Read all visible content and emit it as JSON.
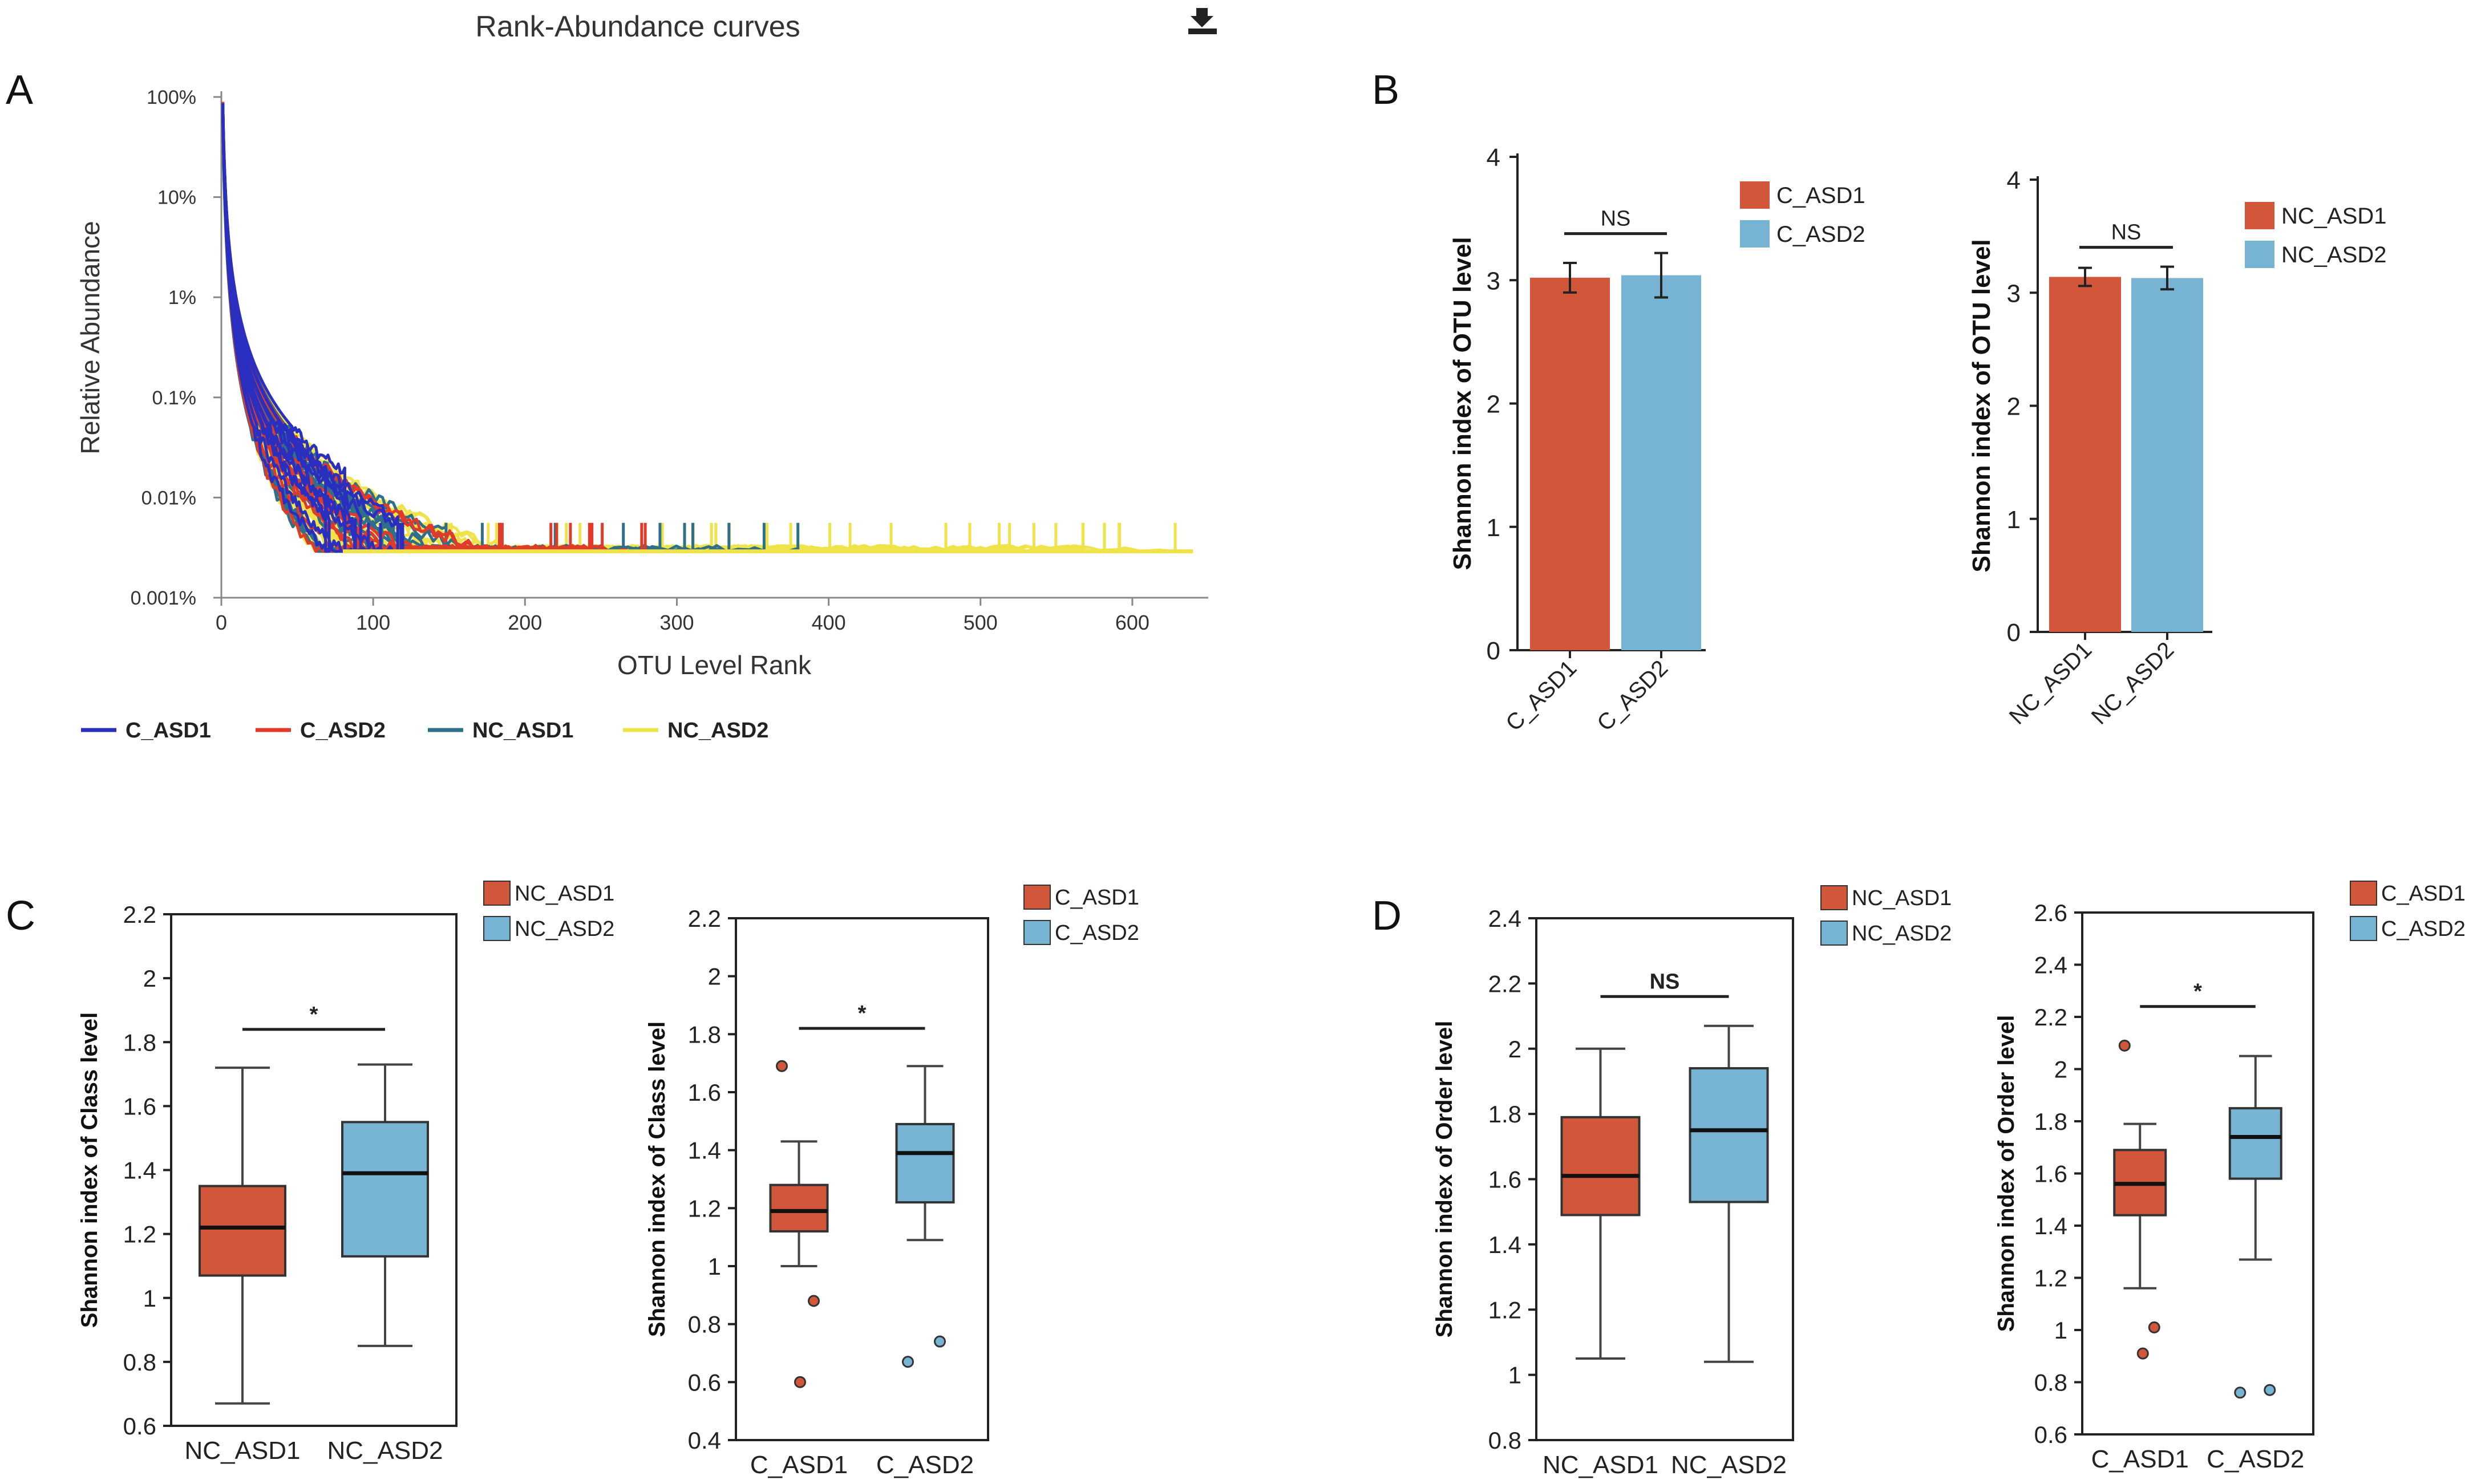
{
  "colors": {
    "orange": "#d2573a",
    "blue": "#77b4d3",
    "c_asd1_line": "#2a2fc0",
    "c_asd2_line": "#e03a2a",
    "nc_asd1_line": "#2f6f8a",
    "nc_asd2_line": "#f0e34a"
  },
  "panels": {
    "A": "A",
    "B": "B",
    "C": "C",
    "D": "D"
  },
  "chart_data": [
    {
      "id": "rank_abundance",
      "type": "line",
      "title": "Rank-Abundance curves",
      "xlabel": "OTU Level Rank",
      "ylabel": "Relative Abundance",
      "xlim": [
        0,
        650
      ],
      "xticks": [
        0,
        100,
        200,
        300,
        400,
        500,
        600
      ],
      "yscale": "log",
      "ylim": [
        0.001,
        100
      ],
      "yticks": [
        "100%",
        "10%",
        "1%",
        "0.1%",
        "0.01%",
        "0.001%"
      ],
      "icon": "download-icon",
      "series": [
        {
          "name": "C_ASD1",
          "color": "#2a2fc0",
          "count": 12,
          "end_rank": [
            60,
            120
          ]
        },
        {
          "name": "C_ASD2",
          "color": "#e03a2a",
          "count": 10,
          "end_rank": [
            150,
            280
          ]
        },
        {
          "name": "NC_ASD1",
          "color": "#2f6f8a",
          "count": 14,
          "end_rank": [
            100,
            390
          ]
        },
        {
          "name": "NC_ASD2",
          "color": "#f0e34a",
          "count": 30,
          "end_rank": [
            120,
            640
          ]
        }
      ]
    },
    {
      "id": "shannon_otu_c",
      "type": "bar",
      "ylabel": "Shannon index of OTU level",
      "ylim": [
        0,
        4
      ],
      "yticks": [
        0,
        1,
        2,
        3,
        4
      ],
      "categories": [
        "C_ASD1",
        "C_ASD2"
      ],
      "values": [
        3.02,
        3.04
      ],
      "errors": [
        0.12,
        0.18
      ],
      "colors": [
        "#d2573a",
        "#77b4d3"
      ],
      "significance": "NS",
      "legend": [
        "C_ASD1",
        "C_ASD2"
      ]
    },
    {
      "id": "shannon_otu_nc",
      "type": "bar",
      "ylabel": "Shannon index of OTU level",
      "ylim": [
        0,
        4
      ],
      "yticks": [
        0,
        1,
        2,
        3,
        4
      ],
      "categories": [
        "NC_ASD1",
        "NC_ASD2"
      ],
      "values": [
        3.14,
        3.13
      ],
      "errors": [
        0.08,
        0.1
      ],
      "colors": [
        "#d2573a",
        "#77b4d3"
      ],
      "significance": "NS",
      "legend": [
        "NC_ASD1",
        "NC_ASD2"
      ]
    },
    {
      "id": "shannon_class_nc",
      "type": "box",
      "ylabel": "Shannon index of Class level",
      "ylim": [
        0.6,
        2.2
      ],
      "yticks": [
        "0.6",
        "0.8",
        "1",
        "1.2",
        "1.4",
        "1.6",
        "1.8",
        "2",
        "2.2"
      ],
      "categories": [
        "NC_ASD1",
        "NC_ASD2"
      ],
      "boxes": [
        {
          "min": 0.67,
          "q1": 1.07,
          "median": 1.22,
          "q3": 1.35,
          "max": 1.72,
          "outliers": []
        },
        {
          "min": 0.85,
          "q1": 1.13,
          "median": 1.39,
          "q3": 1.55,
          "max": 1.73,
          "outliers": []
        }
      ],
      "colors": [
        "#d2573a",
        "#77b4d3"
      ],
      "significance": "*",
      "sig_y": 1.84,
      "legend": [
        "NC_ASD1",
        "NC_ASD2"
      ]
    },
    {
      "id": "shannon_class_c",
      "type": "box",
      "ylabel": "Shannon index of Class level",
      "ylim": [
        0.4,
        2.2
      ],
      "yticks": [
        "0.4",
        "0.6",
        "0.8",
        "1",
        "1.2",
        "1.4",
        "1.6",
        "1.8",
        "2",
        "2.2"
      ],
      "categories": [
        "C_ASD1",
        "C_ASD2"
      ],
      "boxes": [
        {
          "min": 1.0,
          "q1": 1.12,
          "median": 1.19,
          "q3": 1.28,
          "max": 1.43,
          "outliers": [
            1.69,
            0.88,
            0.6
          ]
        },
        {
          "min": 1.09,
          "q1": 1.22,
          "median": 1.39,
          "q3": 1.49,
          "max": 1.69,
          "outliers": [
            0.67,
            0.74
          ]
        }
      ],
      "colors": [
        "#d2573a",
        "#77b4d3"
      ],
      "significance": "*",
      "sig_y": 1.82,
      "legend": [
        "C_ASD1",
        "C_ASD2"
      ]
    },
    {
      "id": "shannon_order_nc",
      "type": "box",
      "ylabel": "Shannon index of Order level",
      "ylim": [
        0.8,
        2.4
      ],
      "yticks": [
        "0.8",
        "1",
        "1.2",
        "1.4",
        "1.6",
        "1.8",
        "2",
        "2.2",
        "2.4"
      ],
      "categories": [
        "NC_ASD1",
        "NC_ASD2"
      ],
      "boxes": [
        {
          "min": 1.05,
          "q1": 1.49,
          "median": 1.61,
          "q3": 1.79,
          "max": 2.0,
          "outliers": []
        },
        {
          "min": 1.04,
          "q1": 1.53,
          "median": 1.75,
          "q3": 1.94,
          "max": 2.07,
          "outliers": []
        }
      ],
      "colors": [
        "#d2573a",
        "#77b4d3"
      ],
      "significance": "NS",
      "sig_y": 2.16,
      "legend": [
        "NC_ASD1",
        "NC_ASD2"
      ]
    },
    {
      "id": "shannon_order_c",
      "type": "box",
      "ylabel": "Shannon index of Order level",
      "ylim": [
        0.6,
        2.6
      ],
      "yticks": [
        "0.6",
        "0.8",
        "1",
        "1.2",
        "1.4",
        "1.6",
        "1.8",
        "2",
        "2.2",
        "2.4",
        "2.6"
      ],
      "categories": [
        "C_ASD1",
        "C_ASD2"
      ],
      "boxes": [
        {
          "min": 1.16,
          "q1": 1.44,
          "median": 1.56,
          "q3": 1.69,
          "max": 1.79,
          "outliers": [
            2.09,
            1.01,
            0.91
          ]
        },
        {
          "min": 1.27,
          "q1": 1.58,
          "median": 1.74,
          "q3": 1.85,
          "max": 2.05,
          "outliers": [
            0.76,
            0.77
          ]
        }
      ],
      "colors": [
        "#d2573a",
        "#77b4d3"
      ],
      "significance": "*",
      "sig_y": 2.24,
      "legend": [
        "C_ASD1",
        "C_ASD2"
      ]
    }
  ]
}
